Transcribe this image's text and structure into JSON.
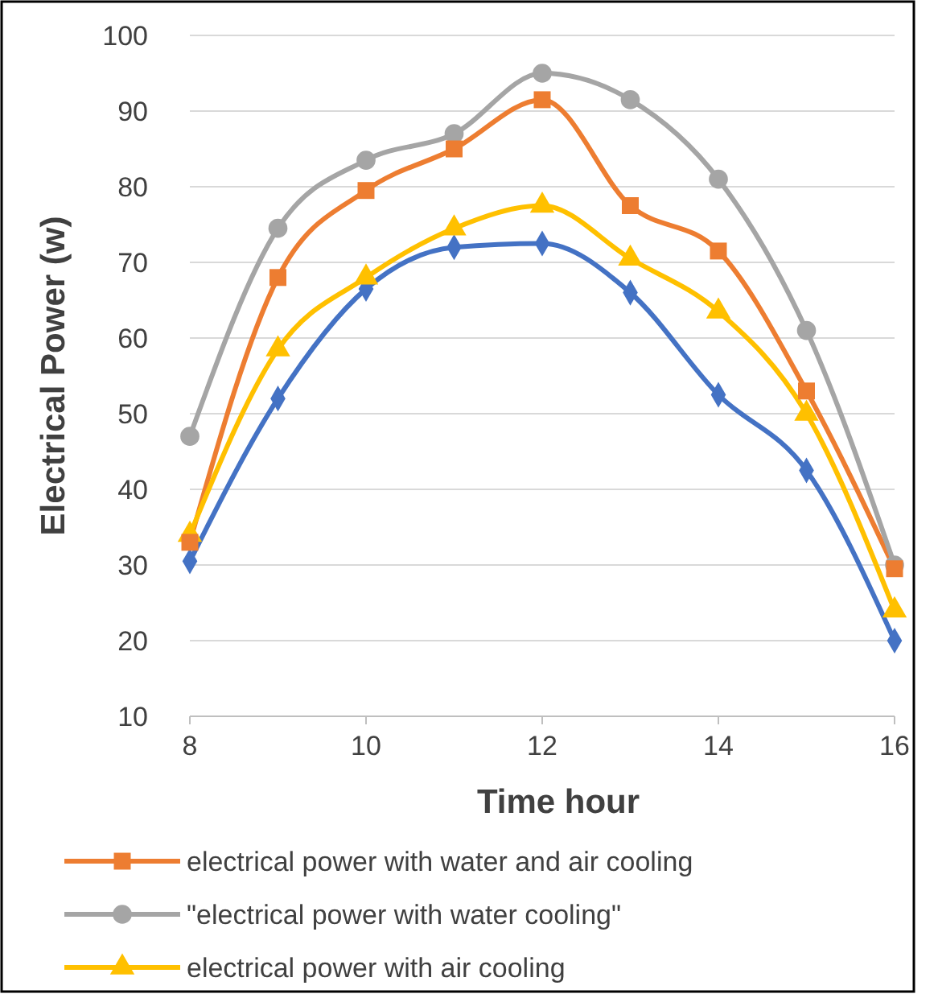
{
  "chart_data": {
    "type": "line",
    "xlabel": "Time hour",
    "ylabel": "Electrical Power (w)",
    "x": [
      8,
      9,
      10,
      11,
      12,
      13,
      14,
      15,
      16
    ],
    "xlim": [
      8,
      16
    ],
    "xticks": [
      8,
      10,
      12,
      14,
      16
    ],
    "ylim": [
      10,
      100
    ],
    "yticks": [
      10,
      20,
      30,
      40,
      50,
      60,
      70,
      80,
      90,
      100
    ],
    "grid": "y",
    "legend": "bottom",
    "series": [
      {
        "name": "electrical power with water and air cooling",
        "color": "#ed7d31",
        "marker": "square",
        "values": [
          33,
          68,
          79.5,
          85,
          91.5,
          77.5,
          71.5,
          53,
          29.5
        ]
      },
      {
        "name": "\"electrical power with water cooling\"",
        "color": "#a5a5a5",
        "marker": "circle",
        "values": [
          47,
          74.5,
          83.5,
          87,
          95,
          91.5,
          81,
          61,
          30
        ]
      },
      {
        "name": "electrical power with air cooling",
        "color": "#ffc000",
        "marker": "triangle",
        "values": [
          34,
          58.5,
          68,
          74.5,
          77.5,
          70.5,
          63.5,
          50,
          24
        ]
      },
      {
        "color": "#4472c4",
        "marker": "diamond",
        "values": [
          30.5,
          52,
          66.5,
          72,
          72.5,
          66,
          52.5,
          42.5,
          20
        ]
      }
    ]
  }
}
